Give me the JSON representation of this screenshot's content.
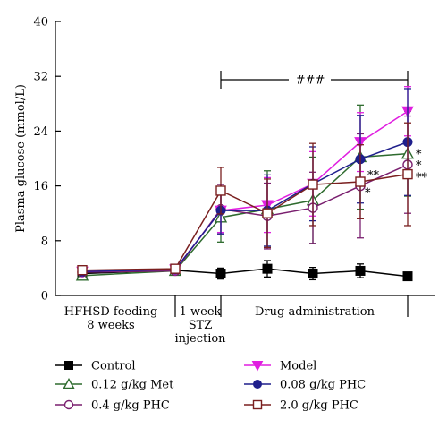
{
  "chart_data": {
    "type": "line",
    "ylabel": "Plasma glucose (mmol/L)",
    "ylim": [
      0,
      40
    ],
    "yticks": [
      0,
      8,
      16,
      24,
      32,
      40
    ],
    "x": [
      1,
      2,
      3,
      4,
      5,
      6,
      7,
      8
    ],
    "phases": [
      {
        "label_lines": [
          "HFHSD feeding",
          "8 weeks"
        ]
      },
      {
        "label_lines": [
          "1 week",
          "STZ",
          "injection"
        ]
      },
      {
        "label_lines": [
          "Drug administration"
        ]
      }
    ],
    "significance_bar": {
      "label": "###",
      "from_x": 3,
      "to_x": 8
    },
    "series": [
      {
        "name": "Control",
        "color": "#000000",
        "marker": "square-filled",
        "values": [
          3.2,
          3.7,
          3.2,
          3.9,
          3.2,
          3.6,
          2.8
        ],
        "x": [
          1,
          2,
          3,
          4,
          5,
          6,
          7
        ],
        "errors": [
          0.4,
          0.4,
          0.8,
          1.2,
          0.9,
          1.0,
          0.5
        ]
      },
      {
        "name": "0.12 g/kg Met",
        "color": "#2e6b2e",
        "marker": "triangle-open",
        "values": [
          2.9,
          3.6,
          11.4,
          12.6,
          13.9,
          20.2,
          20.7
        ],
        "x": [
          1,
          2,
          3,
          4,
          5,
          6,
          7
        ],
        "errors": [
          0.6,
          0.6,
          3.6,
          5.6,
          6.3,
          7.6,
          6.2
        ]
      },
      {
        "name": "0.4 g/kg PHC",
        "color": "#7a1f6f",
        "marker": "circle-open",
        "values": [
          3.4,
          3.6,
          12.6,
          11.6,
          12.8,
          16.0,
          19.1
        ],
        "x": [
          1,
          2,
          3,
          4,
          5,
          6,
          7
        ],
        "errors": [
          0.5,
          0.5,
          3.6,
          4.8,
          5.2,
          7.6,
          7.1
        ]
      },
      {
        "name": "Model",
        "color": "#e01ee0",
        "marker": "triangle-down-filled",
        "values": [
          3.5,
          3.8,
          12.4,
          13.2,
          16.3,
          22.4,
          26.9
        ],
        "x": [
          1,
          2,
          3,
          4,
          5,
          6,
          7
        ],
        "errors": [
          0.5,
          0.5,
          3.2,
          4.0,
          4.7,
          4.3,
          3.6
        ]
      },
      {
        "name": "0.08 g/kg PHC",
        "color": "#1f1f8c",
        "marker": "circle-filled",
        "values": [
          3.5,
          3.8,
          12.4,
          12.4,
          16.3,
          19.9,
          22.4
        ],
        "x": [
          1,
          2,
          3,
          4,
          5,
          6,
          7
        ],
        "errors": [
          0.5,
          0.5,
          3.4,
          5.2,
          5.4,
          6.4,
          7.8
        ]
      },
      {
        "name": "2.0 g/kg PHC",
        "color": "#7a1f1f",
        "marker": "square-open",
        "values": [
          3.7,
          3.9,
          15.3,
          12.0,
          16.2,
          16.6,
          17.7
        ],
        "x": [
          1,
          2,
          3,
          4,
          5,
          6,
          7
        ],
        "errors": [
          0.5,
          0.5,
          3.4,
          5.0,
          6.0,
          5.4,
          7.5
        ]
      }
    ],
    "annotations": [
      {
        "text": "*",
        "series": "0.12 g/kg Met",
        "point": 7
      },
      {
        "text": "*",
        "series": "0.4 g/kg PHC",
        "point": 7
      },
      {
        "text": "**",
        "series": "2.0 g/kg PHC",
        "point": 7
      },
      {
        "text": "**",
        "series": "2.0 g/kg PHC",
        "point": 6
      },
      {
        "text": "*",
        "series": "0.4 g/kg PHC",
        "point": 6
      }
    ],
    "legend_placement": "bottom",
    "grid": false
  }
}
